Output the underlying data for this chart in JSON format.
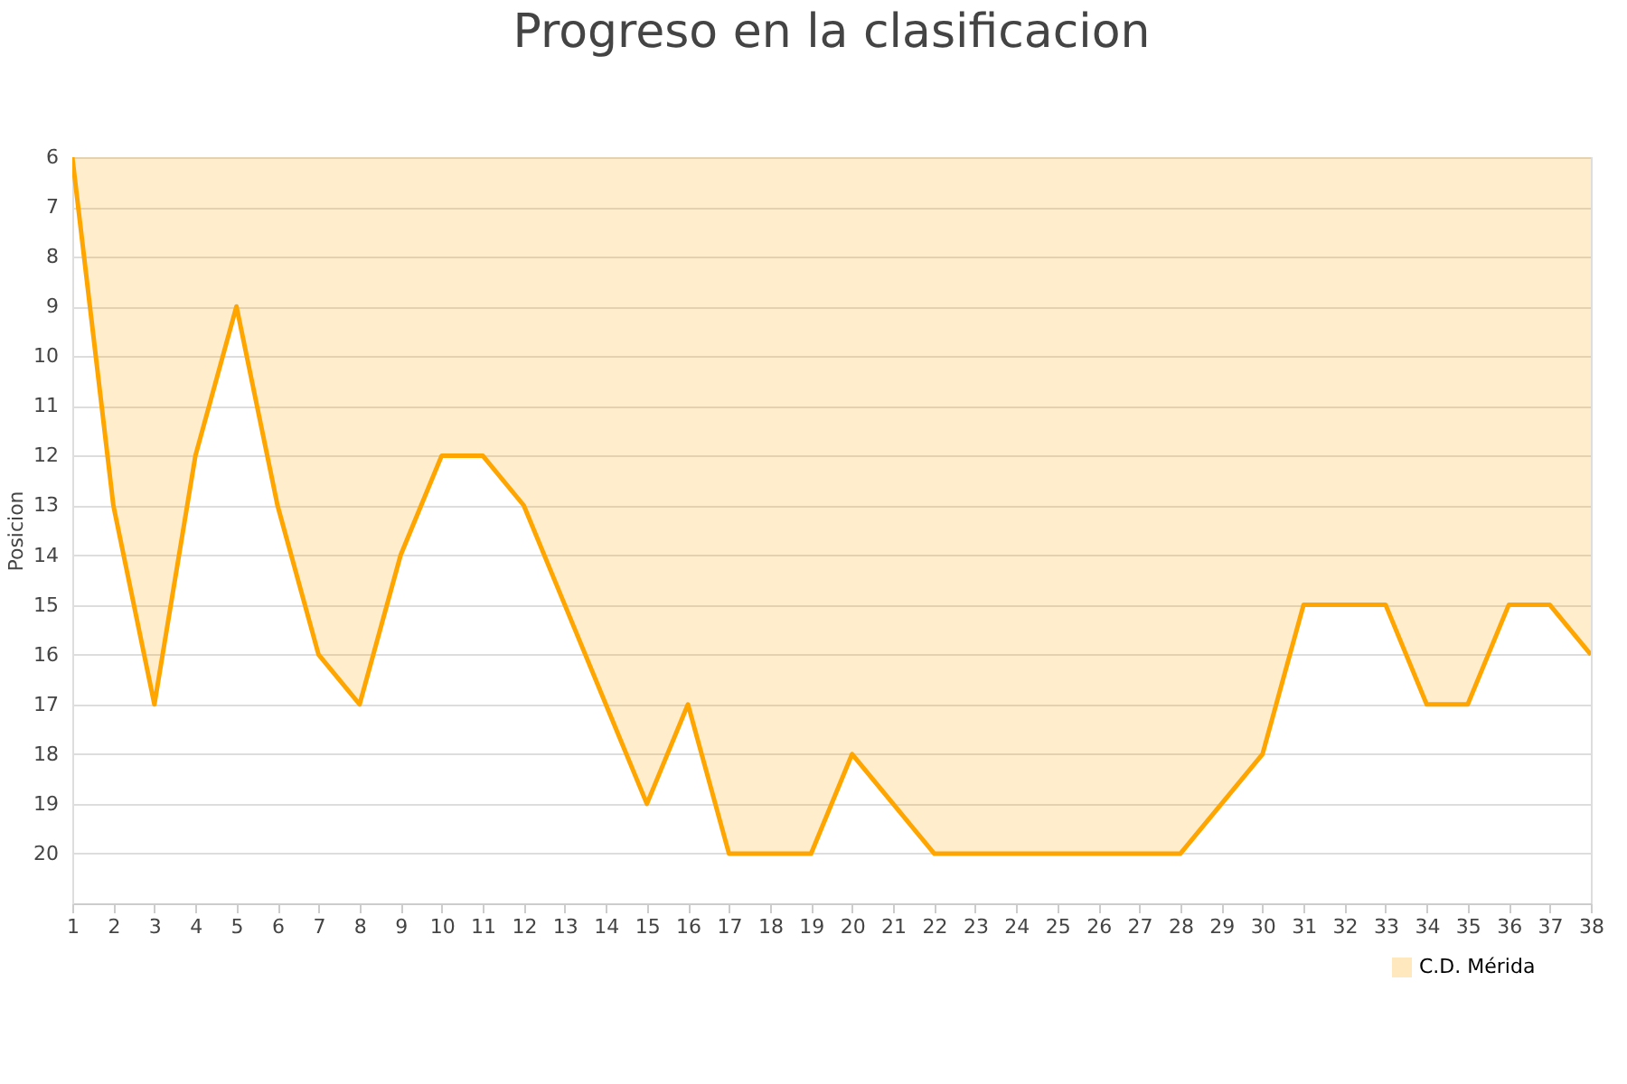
{
  "chart_data": {
    "type": "area",
    "title": "Progreso en la clasificacion",
    "ylabel": "Posicion",
    "x": [
      1,
      2,
      3,
      4,
      5,
      6,
      7,
      8,
      9,
      10,
      11,
      12,
      13,
      14,
      15,
      16,
      17,
      18,
      19,
      20,
      21,
      22,
      23,
      24,
      25,
      26,
      27,
      28,
      29,
      30,
      31,
      32,
      33,
      34,
      35,
      36,
      37,
      38
    ],
    "series": [
      {
        "name": "C.D. Mérida",
        "color": "#ffa500",
        "values": [
          6,
          13,
          17,
          12,
          9,
          13,
          16,
          17,
          14,
          12,
          12,
          13,
          15,
          17,
          19,
          17,
          20,
          20,
          20,
          18,
          19,
          20,
          20,
          20,
          20,
          20,
          20,
          20,
          19,
          18,
          15,
          15,
          15,
          17,
          17,
          15,
          15,
          16
        ]
      }
    ],
    "xlim": [
      1,
      38
    ],
    "xticks": [
      1,
      2,
      3,
      4,
      5,
      6,
      7,
      8,
      9,
      10,
      11,
      12,
      13,
      14,
      15,
      16,
      17,
      18,
      19,
      20,
      21,
      22,
      23,
      24,
      25,
      26,
      27,
      28,
      29,
      30,
      31,
      32,
      33,
      34,
      35,
      36,
      37,
      38
    ],
    "ylim": [
      21,
      6
    ],
    "yticks": [
      6,
      7,
      8,
      9,
      10,
      11,
      12,
      13,
      14,
      15,
      16,
      17,
      18,
      19,
      20
    ],
    "grid": "y",
    "legend": "bottom right",
    "marker": "none",
    "line_style": "solid"
  }
}
